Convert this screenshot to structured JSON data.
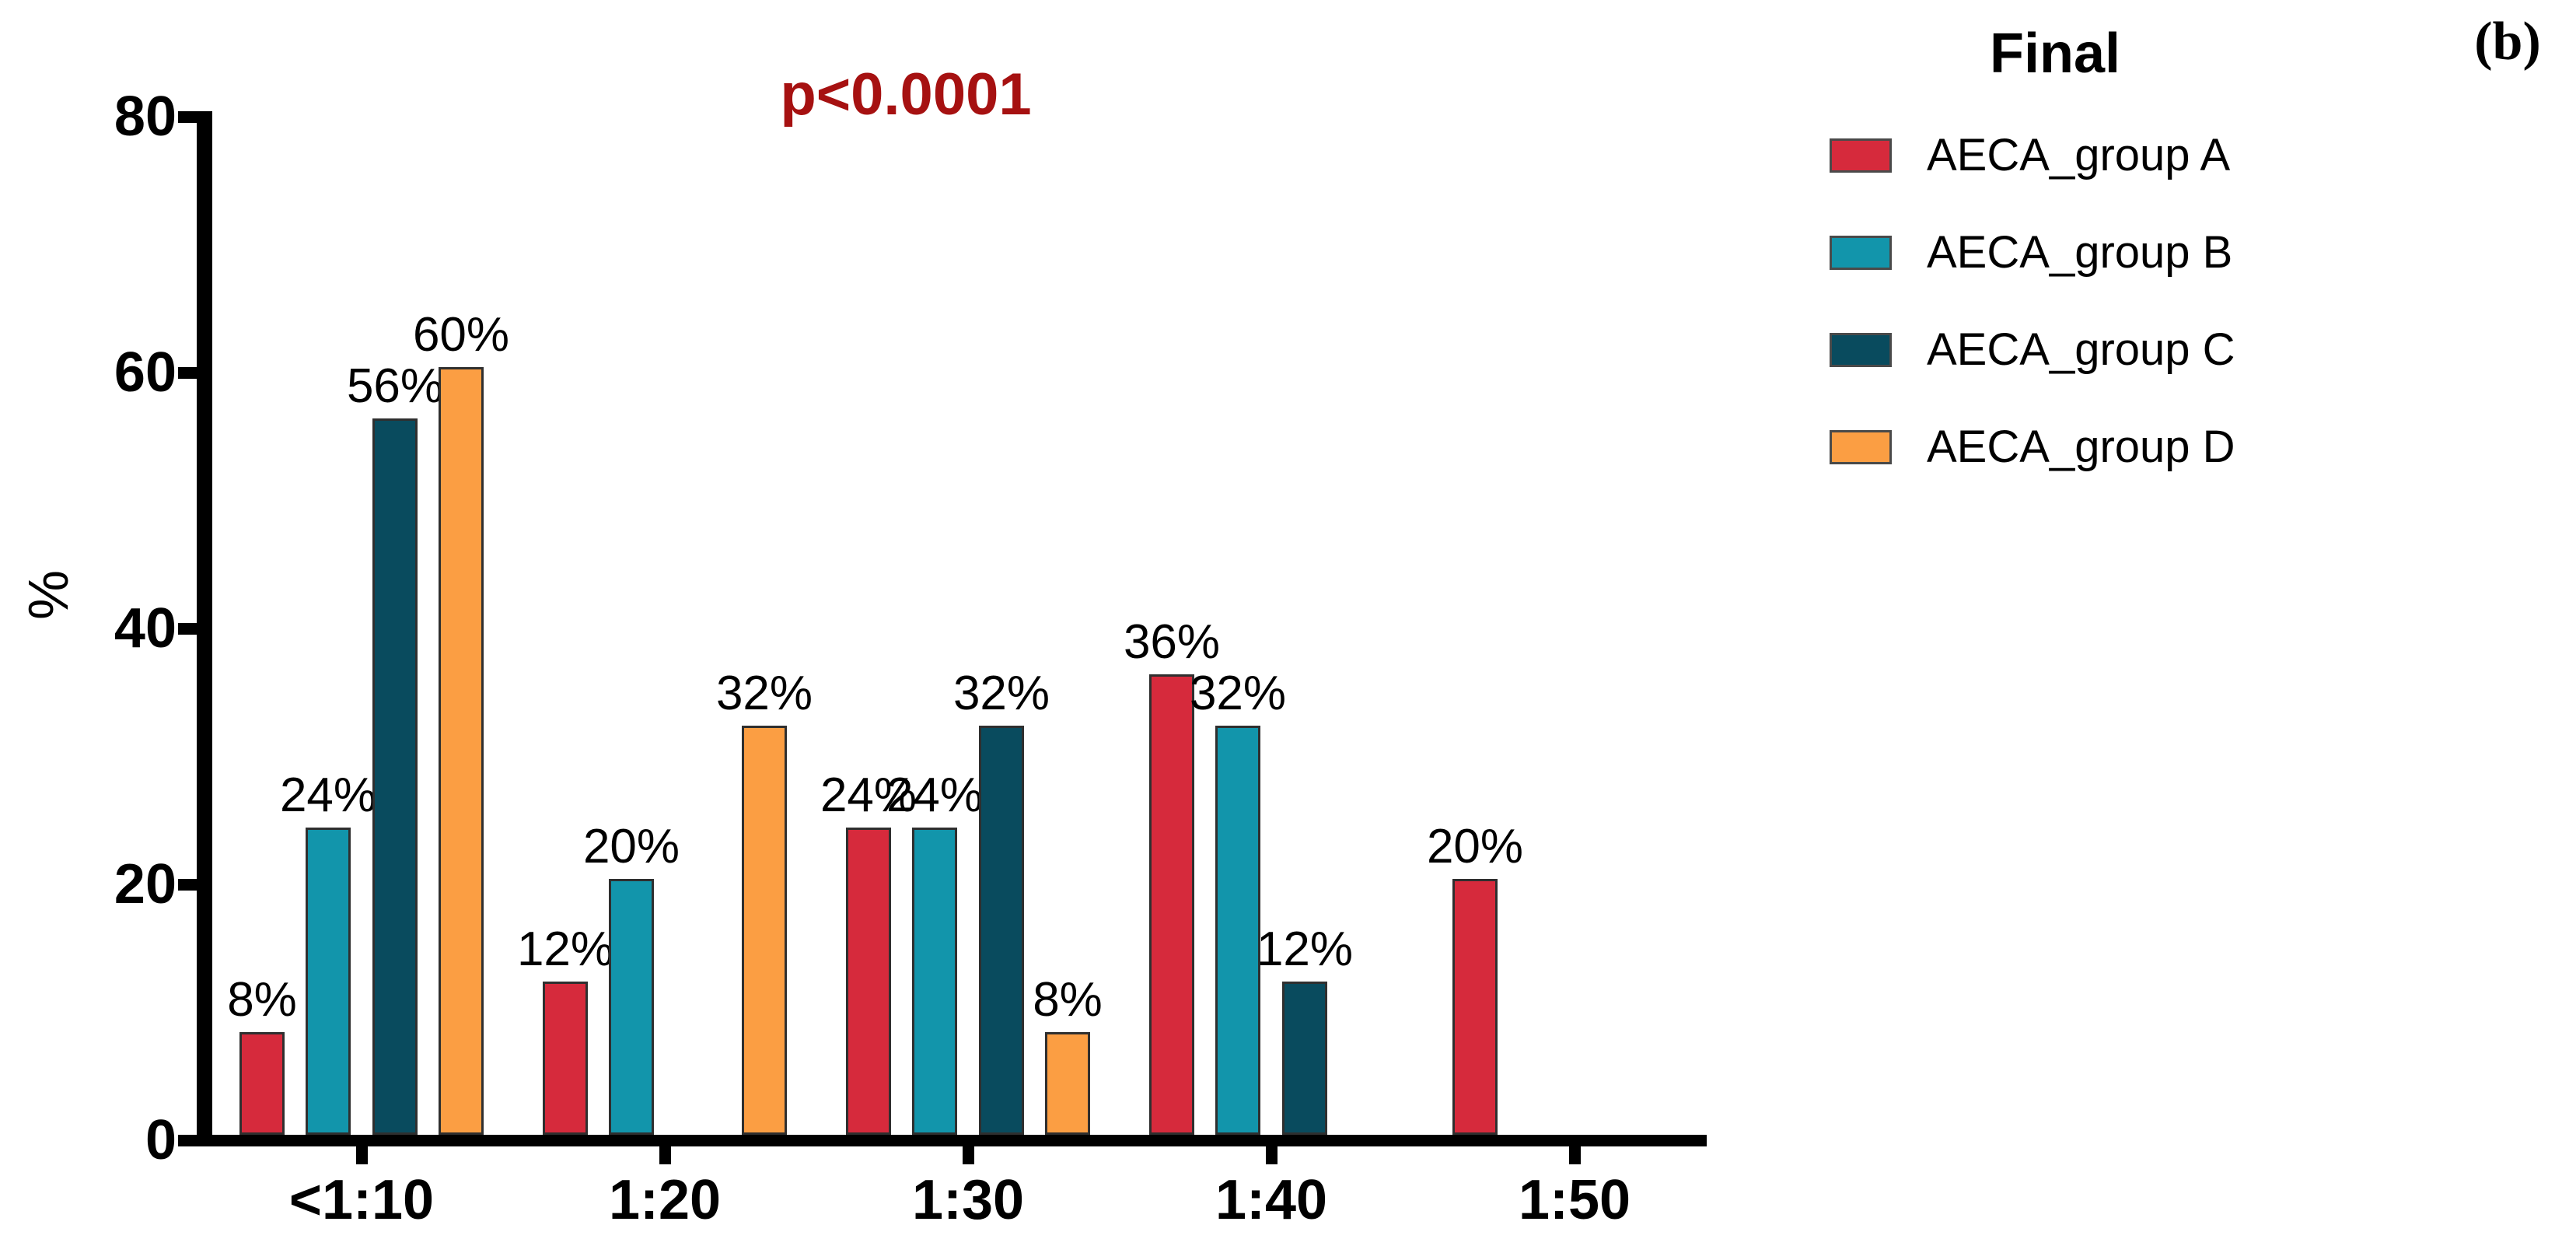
{
  "figure": {
    "panel_label": "(b)",
    "annotation": {
      "text": "p<0.0001",
      "color": "#A61111"
    }
  },
  "legend": {
    "title": "Final",
    "items": [
      {
        "label": "AECA_group A",
        "color": "#D62A3C"
      },
      {
        "label": "AECA_group B",
        "color": "#1295AB"
      },
      {
        "label": "AECA_group C",
        "color": "#094B5E"
      },
      {
        "label": "AECA_group D",
        "color": "#FB9E43"
      }
    ]
  },
  "chart_data": {
    "type": "bar",
    "title": "Final",
    "annotation": "p<0.0001",
    "categories": [
      "<1:10",
      "1:20",
      "1:30",
      "1:40",
      "1:50"
    ],
    "series": [
      {
        "name": "AECA_group A",
        "color": "#D62A3C",
        "values": [
          8,
          12,
          24,
          36,
          20
        ]
      },
      {
        "name": "AECA_group B",
        "color": "#1295AB",
        "values": [
          24,
          20,
          24,
          32,
          0
        ]
      },
      {
        "name": "AECA_group C",
        "color": "#094B5E",
        "values": [
          56,
          0,
          32,
          12,
          0
        ]
      },
      {
        "name": "AECA_group D",
        "color": "#FB9E43",
        "values": [
          60,
          32,
          8,
          0,
          0
        ]
      }
    ],
    "bar_label_format": "{value}%",
    "xlabel": "",
    "ylabel": "%",
    "ylim": [
      0,
      80
    ],
    "y_ticks": [
      0,
      20,
      40,
      60,
      80
    ],
    "grid": false,
    "legend_position": "top-right",
    "zero_bars_hidden": true
  }
}
